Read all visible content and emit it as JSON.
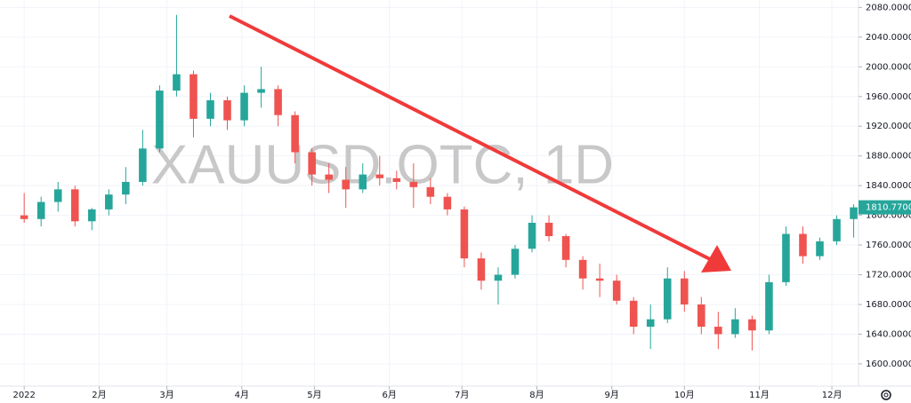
{
  "chart_data": {
    "type": "candlestick",
    "watermark": "XAUUSD.OTC, 1D",
    "up_color": "#26a69a",
    "down_color": "#ef5350",
    "grid": true,
    "x": [
      0,
      7,
      14,
      21,
      28,
      35,
      42,
      49,
      56,
      63,
      70,
      77,
      84,
      91,
      98,
      105,
      112,
      119,
      126,
      133,
      140,
      147,
      154,
      161,
      168,
      175,
      182,
      189,
      196,
      203,
      210,
      217,
      224,
      231,
      238,
      245,
      252,
      259,
      266,
      273,
      280,
      287,
      294,
      301,
      308,
      315,
      322,
      329,
      336,
      343
    ],
    "open": [
      1800,
      1795,
      1818,
      1835,
      1792,
      1808,
      1828,
      1845,
      1890,
      1968,
      1990,
      1930,
      1955,
      1928,
      1965,
      1970,
      1935,
      1885,
      1855,
      1848,
      1835,
      1855,
      1850,
      1845,
      1838,
      1825,
      1808,
      1742,
      1712,
      1720,
      1755,
      1790,
      1772,
      1740,
      1715,
      1712,
      1685,
      1650,
      1660,
      1715,
      1680,
      1650,
      1640,
      1660,
      1645,
      1710,
      1775,
      1745,
      1765,
      1795
    ],
    "high": [
      1830,
      1825,
      1845,
      1840,
      1810,
      1835,
      1865,
      1915,
      1975,
      2070,
      1995,
      1965,
      1960,
      1975,
      2000,
      1975,
      1940,
      1890,
      1870,
      1865,
      1870,
      1880,
      1860,
      1870,
      1850,
      1830,
      1812,
      1750,
      1730,
      1760,
      1800,
      1800,
      1775,
      1745,
      1735,
      1720,
      1690,
      1680,
      1730,
      1725,
      1690,
      1670,
      1675,
      1665,
      1720,
      1785,
      1785,
      1770,
      1800,
      1815
    ],
    "low": [
      1790,
      1785,
      1805,
      1785,
      1780,
      1800,
      1815,
      1840,
      1885,
      1960,
      1905,
      1920,
      1915,
      1920,
      1945,
      1920,
      1870,
      1840,
      1830,
      1810,
      1830,
      1840,
      1835,
      1810,
      1815,
      1800,
      1730,
      1700,
      1680,
      1715,
      1750,
      1765,
      1730,
      1700,
      1690,
      1680,
      1640,
      1620,
      1655,
      1670,
      1640,
      1620,
      1635,
      1618,
      1640,
      1705,
      1735,
      1740,
      1760,
      1770
    ],
    "close": [
      1795,
      1818,
      1835,
      1792,
      1808,
      1828,
      1845,
      1890,
      1968,
      1990,
      1930,
      1955,
      1928,
      1965,
      1970,
      1935,
      1885,
      1855,
      1848,
      1835,
      1855,
      1850,
      1845,
      1838,
      1825,
      1808,
      1742,
      1712,
      1720,
      1755,
      1790,
      1772,
      1740,
      1715,
      1712,
      1685,
      1650,
      1660,
      1715,
      1680,
      1650,
      1640,
      1660,
      1645,
      1710,
      1775,
      1745,
      1765,
      1795,
      1810.77
    ],
    "xlim": [
      -10,
      345
    ],
    "xticks": [
      {
        "value": 0,
        "label": "2022"
      },
      {
        "value": 31,
        "label": "2月"
      },
      {
        "value": 59,
        "label": "3月"
      },
      {
        "value": 90,
        "label": "4月"
      },
      {
        "value": 120,
        "label": "5月"
      },
      {
        "value": 151,
        "label": "6月"
      },
      {
        "value": 181,
        "label": "7月"
      },
      {
        "value": 212,
        "label": "8月"
      },
      {
        "value": 243,
        "label": "9月"
      },
      {
        "value": 273,
        "label": "10月"
      },
      {
        "value": 304,
        "label": "11月"
      },
      {
        "value": 334,
        "label": "12月"
      }
    ],
    "ylim": [
      1570,
      2090
    ],
    "yticks": [
      {
        "value": 1600,
        "label": "1600.0000"
      },
      {
        "value": 1640,
        "label": "1640.0000"
      },
      {
        "value": 1680,
        "label": "1680.0000"
      },
      {
        "value": 1720,
        "label": "1720.0000"
      },
      {
        "value": 1760,
        "label": "1760.0000"
      },
      {
        "value": 1800,
        "label": "1800.0000"
      },
      {
        "value": 1840,
        "label": "1840.0000"
      },
      {
        "value": 1880,
        "label": "1880.0000"
      },
      {
        "value": 1920,
        "label": "1920.0000"
      },
      {
        "value": 1960,
        "label": "1960.0000"
      },
      {
        "value": 2000,
        "label": "2000.0000"
      },
      {
        "value": 2040,
        "label": "2040.0000"
      },
      {
        "value": 2080,
        "label": "2080.0000"
      }
    ],
    "last_price": {
      "value": 1810.77,
      "label": "1810.7700"
    }
  }
}
